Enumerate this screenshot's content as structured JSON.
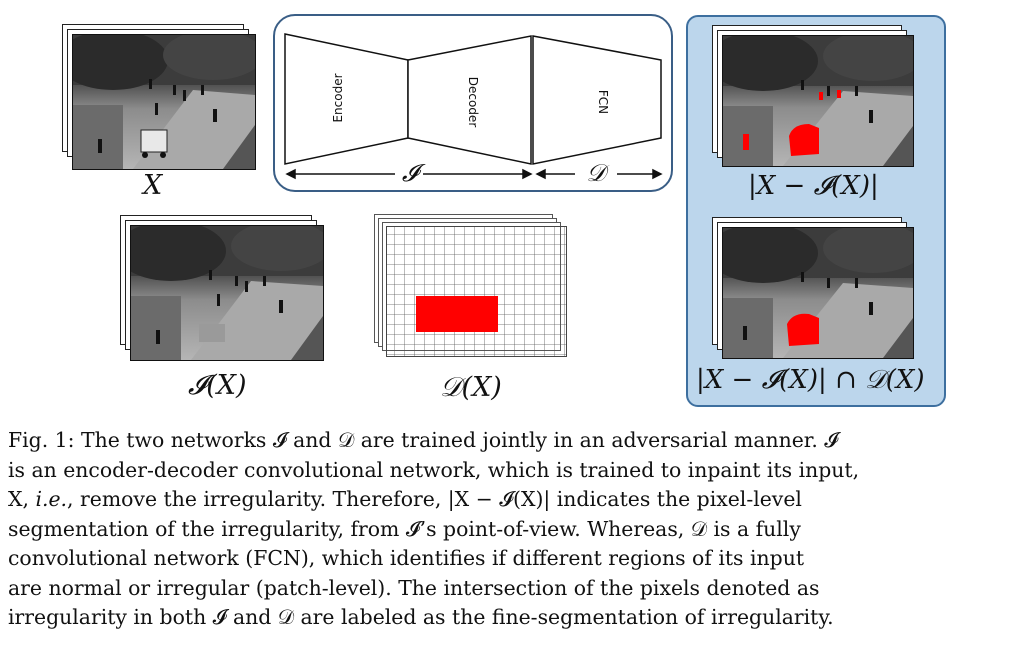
{
  "figure": {
    "input_label": "X",
    "inpainted_label": "𝓘(X)",
    "detector_label": "𝒟(X)",
    "network": {
      "encoder_label": "Encoder",
      "decoder_label": "Decoder",
      "fcn_label": "FCN",
      "inpainter_symbol": "𝓘",
      "detector_symbol": "𝒟"
    },
    "output_panel": {
      "diff_label": "|X − 𝓘(X)|",
      "intersection_label": "|X − 𝓘(X)| ∩ 𝒟(X)"
    },
    "colors": {
      "anomaly_red": "#ff0000",
      "panel_fill": "#bcd6ec",
      "panel_border": "#3d6f9f",
      "network_border": "#3a5e86"
    }
  },
  "caption": {
    "line1": "Fig. 1: The two networks 𝓘 and 𝒟 are trained jointly in an adversarial manner. 𝓘",
    "line2": "is an encoder-decoder convolutional network, which is trained to inpaint its input,",
    "line3_a": "X, ",
    "line3_ie": "i.e.",
    "line3_b": ", remove the irregularity. Therefore, |X − 𝓘(X)| indicates the pixel-level",
    "line4": "segmentation of the irregularity, from 𝓘’s point-of-view. Whereas, 𝒟 is a fully",
    "line5": "convolutional network (FCN), which identifies if different regions of its input",
    "line6": "are normal or irregular (patch-level). The intersection of the pixels denoted as",
    "line7": "irregularity in both 𝓘 and 𝒟 are labeled as the fine-segmentation of irregularity."
  }
}
